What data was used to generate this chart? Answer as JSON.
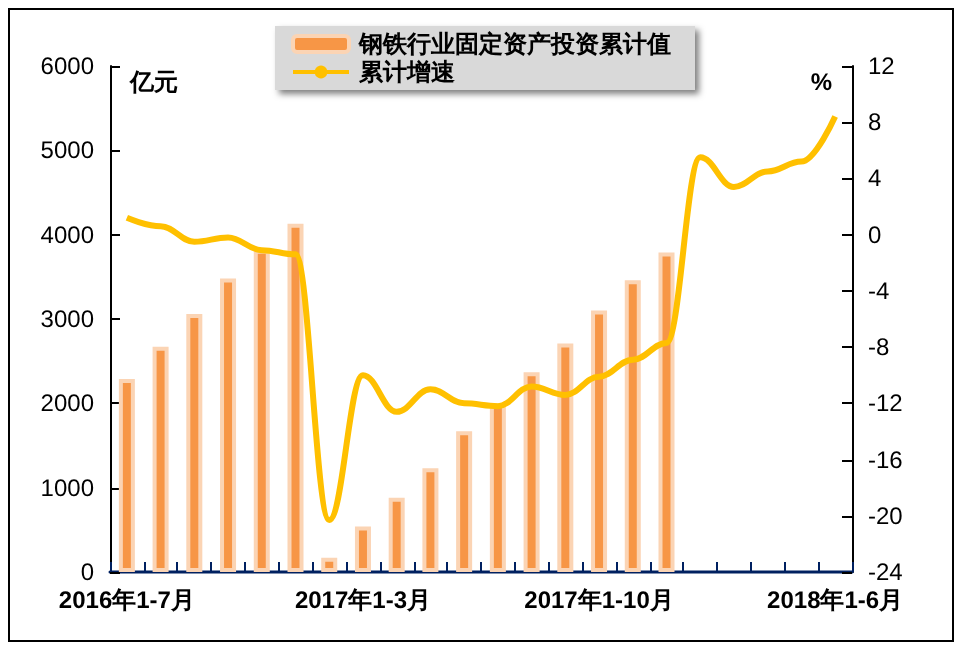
{
  "chart_data": {
    "type": "bar",
    "ylabel": "亿元",
    "y2label": "%",
    "categories": [
      "2016年1-7月",
      null,
      null,
      null,
      null,
      null,
      null,
      "2017年1-3月",
      null,
      null,
      null,
      null,
      null,
      null,
      "2017年1-10月",
      null,
      null,
      null,
      null,
      null,
      null,
      "2018年1-6月"
    ],
    "series": [
      {
        "name": "钢铁行业固定资产投资累计值",
        "color": "#f79646",
        "values": [
          2290,
          2670,
          3060,
          3480,
          3820,
          4130,
          170,
          540,
          880,
          1230,
          1670,
          2000,
          2370,
          2710,
          3100,
          3460,
          3790,
          null,
          null,
          null,
          null,
          null
        ]
      },
      {
        "name": "累计增速",
        "type": "line",
        "axis": "y2",
        "color": "#ffc000",
        "values": [
          1.2,
          0.6,
          -0.5,
          -0.2,
          -1.1,
          -1.4,
          -20.3,
          -10,
          -12.6,
          -11,
          -12,
          -12.2,
          -10.8,
          -11.4,
          -10.1,
          -8.9,
          -7.7,
          5.5,
          3.4,
          4.5,
          5.2,
          8.4
        ]
      }
    ],
    "ylim": [
      0,
      6000
    ],
    "yticks": [
      0,
      1000,
      2000,
      3000,
      4000,
      5000,
      6000
    ],
    "y2lim": [
      -24,
      12
    ],
    "y2ticks": [
      -24,
      -20,
      -16,
      -12,
      -8,
      -4,
      0,
      4,
      8,
      12
    ],
    "grid": false,
    "legend": "top",
    "marker": "none"
  }
}
